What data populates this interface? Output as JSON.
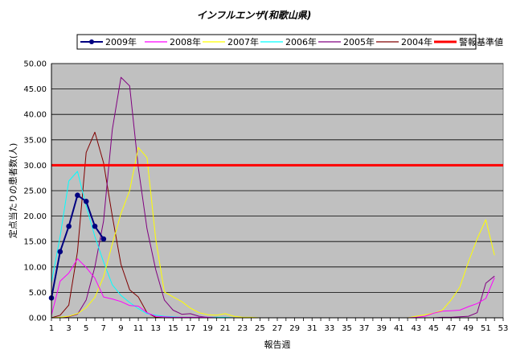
{
  "chart_data": {
    "type": "line",
    "title": "インフルエンザ(和歌山県)",
    "xlabel": "報告週",
    "ylabel": "定点当たりの患者数(人)",
    "ylim": [
      0,
      50
    ],
    "xlim": [
      1,
      53
    ],
    "y_ticks": [
      "0.00",
      "5.00",
      "10.00",
      "15.00",
      "20.00",
      "25.00",
      "30.00",
      "35.00",
      "40.00",
      "45.00",
      "50.00"
    ],
    "x_ticks": [
      "1",
      "3",
      "5",
      "7",
      "9",
      "11",
      "13",
      "15",
      "17",
      "19",
      "21",
      "23",
      "25",
      "27",
      "29",
      "31",
      "33",
      "35",
      "37",
      "39",
      "41",
      "43",
      "45",
      "47",
      "49",
      "51",
      "53"
    ],
    "grid": true,
    "legend_position": "top",
    "plot_background": "#c0c0c0",
    "series": [
      {
        "name": "2009年",
        "color": "#000080",
        "markers": true,
        "x": [
          1,
          2,
          3,
          4,
          5,
          6,
          7
        ],
        "y": [
          3.9,
          13.0,
          18.0,
          24.1,
          22.9,
          18.0,
          15.5
        ]
      },
      {
        "name": "2008年",
        "color": "#ff00ff",
        "x": [
          1,
          2,
          3,
          4,
          5,
          6,
          7,
          8,
          9,
          10,
          11,
          12,
          13,
          14,
          15,
          16,
          17,
          18,
          19,
          20,
          21,
          22,
          23,
          24,
          25,
          26,
          27,
          28,
          29,
          30,
          31,
          32,
          33,
          34,
          35,
          36,
          37,
          38,
          39,
          40,
          41,
          42,
          43,
          44,
          45,
          46,
          47,
          48,
          49,
          50,
          51,
          52
        ],
        "y": [
          0.5,
          7.2,
          8.8,
          11.6,
          9.9,
          7.8,
          4.1,
          3.7,
          3.2,
          2.4,
          2.3,
          1.0,
          0.3,
          0.2,
          0.1,
          0.1,
          0.1,
          0.1,
          0.1,
          0.0,
          0.0,
          0.0,
          0.0,
          0.0,
          0.0,
          0.0,
          0.0,
          0.0,
          0.0,
          0.0,
          0.0,
          0.0,
          0.0,
          0.0,
          0.0,
          0.0,
          0.0,
          0.0,
          0.0,
          0.0,
          0.0,
          0.0,
          0.1,
          0.3,
          0.9,
          1.3,
          1.4,
          1.5,
          2.2,
          2.8,
          3.8,
          7.9
        ]
      },
      {
        "name": "2007年",
        "color": "#ffff00",
        "x": [
          1,
          2,
          3,
          4,
          5,
          6,
          7,
          8,
          9,
          10,
          11,
          12,
          13,
          14,
          15,
          16,
          17,
          18,
          19,
          20,
          21,
          22,
          23,
          24,
          25,
          26,
          27,
          28,
          29,
          30,
          31,
          32,
          33,
          34,
          35,
          36,
          37,
          38,
          39,
          40,
          41,
          42,
          43,
          44,
          45,
          46,
          47,
          48,
          49,
          50,
          51,
          52
        ],
        "y": [
          0.0,
          0.1,
          0.3,
          0.8,
          2.0,
          4.0,
          8.0,
          14.5,
          20.5,
          25.0,
          33.5,
          31.5,
          15.5,
          5.1,
          4.1,
          3.2,
          1.9,
          1.0,
          0.6,
          0.5,
          0.8,
          0.3,
          0.1,
          0.1,
          0.0,
          0.0,
          0.0,
          0.0,
          0.0,
          0.0,
          0.0,
          0.0,
          0.0,
          0.0,
          0.0,
          0.0,
          0.0,
          0.0,
          0.0,
          0.0,
          0.0,
          0.0,
          0.3,
          0.6,
          0.9,
          1.5,
          3.5,
          6.0,
          11.0,
          15.5,
          19.3,
          12.3
        ]
      },
      {
        "name": "2006年",
        "color": "#00ffff",
        "x": [
          1,
          2,
          3,
          4,
          5,
          6,
          7,
          8,
          9,
          10,
          11,
          12,
          13,
          14,
          15,
          16,
          17,
          18,
          19,
          20,
          21,
          22,
          23,
          24,
          25,
          26,
          27,
          28
        ],
        "y": [
          6.9,
          16.0,
          26.9,
          28.8,
          22.0,
          16.0,
          11.0,
          6.5,
          4.4,
          3.0,
          1.8,
          0.8,
          0.5,
          0.3,
          0.2,
          0.1,
          0.1,
          0.1,
          0.1,
          0.1,
          0.1,
          0.0,
          0.0,
          0.0,
          0.0,
          0.0,
          0.0,
          0.0
        ]
      },
      {
        "name": "2005年",
        "color": "#800080",
        "x": [
          1,
          2,
          3,
          4,
          5,
          6,
          7,
          8,
          9,
          10,
          11,
          12,
          13,
          14,
          15,
          16,
          17,
          18,
          19,
          20,
          21,
          22,
          23,
          24,
          25,
          26,
          27,
          28,
          29,
          30,
          31,
          32,
          33,
          34,
          35,
          36,
          37,
          38,
          39,
          40,
          41,
          42,
          43,
          44,
          45,
          46,
          47,
          48,
          49,
          50,
          51,
          52
        ],
        "y": [
          0.0,
          0.0,
          0.2,
          0.7,
          3.5,
          10.0,
          19.0,
          37.0,
          47.3,
          45.6,
          29.5,
          17.5,
          9.5,
          3.5,
          1.5,
          0.7,
          0.8,
          0.3,
          0.1,
          0.1,
          0.0,
          0.0,
          0.0,
          0.0,
          0.0,
          0.0,
          0.0,
          0.0,
          0.0,
          0.0,
          0.0,
          0.0,
          0.0,
          0.0,
          0.0,
          0.0,
          0.0,
          0.0,
          0.0,
          0.0,
          0.0,
          0.0,
          0.0,
          0.0,
          0.0,
          0.1,
          0.1,
          0.2,
          0.3,
          1.0,
          6.8,
          8.2
        ]
      },
      {
        "name": "2004年",
        "color": "#800000",
        "x": [
          1,
          2,
          3,
          4,
          5,
          6,
          7,
          8,
          9,
          10,
          11,
          12,
          13,
          14,
          15,
          16,
          17,
          18,
          19,
          20,
          21,
          22,
          23,
          24,
          25,
          26,
          27,
          28,
          29,
          30,
          31,
          32,
          33,
          34,
          35,
          36,
          37,
          38,
          39,
          40,
          41,
          42,
          43,
          44,
          45,
          46,
          47,
          48,
          49,
          50,
          51,
          52
        ],
        "y": [
          0.0,
          0.5,
          2.5,
          13.0,
          32.5,
          36.5,
          30.5,
          20.0,
          10.5,
          5.5,
          4.1,
          1.0,
          0.1,
          0.0,
          0.0,
          0.0,
          0.0,
          0.0,
          0.0,
          0.0,
          0.0,
          0.0,
          0.0,
          0.0,
          0.0,
          0.0,
          0.0,
          0.0,
          0.0,
          0.0,
          0.0,
          0.0,
          0.0,
          0.0,
          0.0,
          0.0,
          0.0,
          0.0,
          0.0,
          0.0,
          0.0,
          0.0,
          0.0,
          0.0,
          0.0,
          0.0,
          0.0,
          0.0,
          0.0,
          0.0,
          0.0,
          0.0
        ]
      },
      {
        "name": "警報基準値",
        "color": "#ff0000",
        "thick": true,
        "x": [
          1,
          53
        ],
        "y": [
          30,
          30
        ]
      }
    ]
  }
}
